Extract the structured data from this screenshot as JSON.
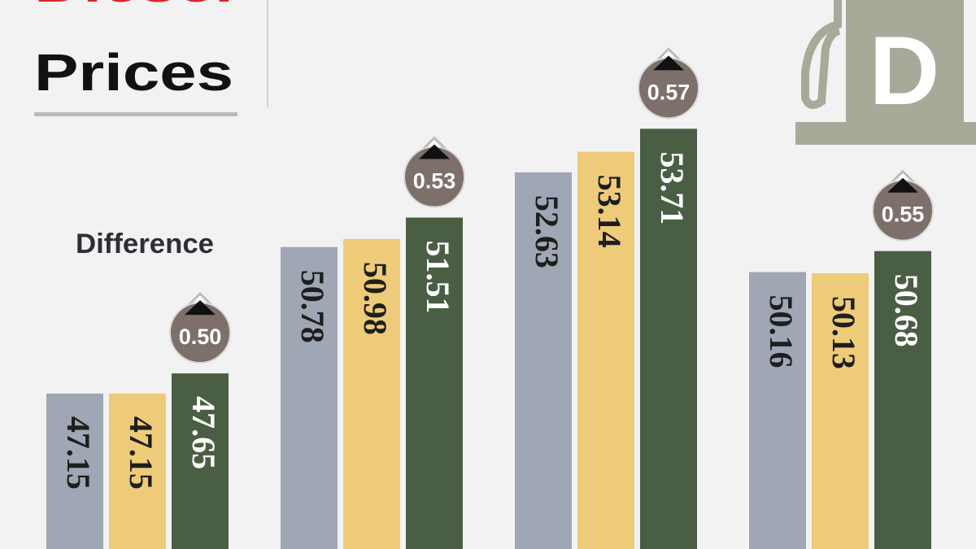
{
  "chart_data": {
    "type": "bar",
    "title_lines": [
      "Diesel",
      "Prices"
    ],
    "icon_letter": "D",
    "categories": [
      null,
      null,
      null,
      null
    ],
    "series": [
      {
        "color": "#9ea7b3",
        "label_color": "#1e1e1e",
        "values": [
          47.15,
          50.78,
          52.63,
          50.16
        ]
      },
      {
        "color": "#eecb78",
        "label_color": "#1e1e1e",
        "values": [
          47.15,
          50.98,
          53.14,
          50.13
        ]
      },
      {
        "color": "#4a5e44",
        "label_color": "#ffffff",
        "values": [
          47.65,
          51.51,
          53.71,
          50.68
        ]
      }
    ],
    "differences": {
      "label": "Difference",
      "color": "#7d706b",
      "values": [
        0.5,
        0.53,
        0.57,
        0.55
      ],
      "value_labels": [
        "0.50",
        "0.53",
        "0.57",
        "0.55"
      ]
    },
    "ylim": [
      43.3,
      56.9
    ]
  }
}
